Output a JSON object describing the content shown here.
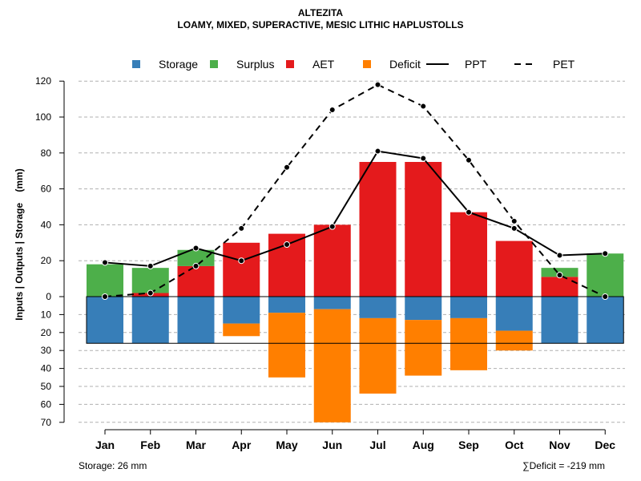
{
  "title": "ALTEZITA",
  "subtitle": "LOAMY, MIXED, SUPERACTIVE, MESIC LITHIC HAPLUSTOLLS",
  "footer": {
    "storage_note": "Storage: 26 mm",
    "deficit_symbol": "∑",
    "deficit_note": "Deficit = -219 mm"
  },
  "colors": {
    "storage": "#377EB8",
    "surplus": "#4DAF4A",
    "aet": "#E41A1C",
    "deficit": "#FF7F00"
  },
  "chart_data": {
    "type": "bar",
    "title": "ALTEZITA",
    "subtitle": "LOAMY, MIXED, SUPERACTIVE, MESIC LITHIC HAPLUSTOLLS",
    "ylabel": "Inputs | Outputs | Storage    (mm)",
    "categories": [
      "Jan",
      "Feb",
      "Mar",
      "Apr",
      "May",
      "Jun",
      "Jul",
      "Aug",
      "Sep",
      "Oct",
      "Nov",
      "Dec"
    ],
    "ylim_top": [
      0,
      120
    ],
    "ylim_bottom": [
      0,
      70
    ],
    "y_ticks_top": [
      0,
      20,
      40,
      60,
      80,
      100,
      120
    ],
    "y_ticks_bottom": [
      10,
      20,
      30,
      40,
      50,
      60,
      70
    ],
    "grid": true,
    "legend": {
      "position": "top",
      "entries": [
        {
          "label": "Storage",
          "type": "square",
          "key": "storage"
        },
        {
          "label": "Surplus",
          "type": "square",
          "key": "surplus"
        },
        {
          "label": "AET",
          "type": "square",
          "key": "aet"
        },
        {
          "label": "Deficit",
          "type": "square",
          "key": "deficit"
        },
        {
          "label": "PPT",
          "type": "solid-line"
        },
        {
          "label": "PET",
          "type": "dashed-line"
        }
      ]
    },
    "series": [
      {
        "name": "AET",
        "values": [
          0,
          2,
          17,
          30,
          35,
          40,
          75,
          75,
          47,
          31,
          11,
          0
        ]
      },
      {
        "name": "Surplus",
        "values": [
          18,
          14,
          9,
          0,
          0,
          0,
          0,
          0,
          0,
          0,
          5,
          24
        ]
      },
      {
        "name": "Storage",
        "values": [
          26,
          26,
          26,
          15,
          9,
          7,
          12,
          13,
          12,
          19,
          26,
          26
        ]
      },
      {
        "name": "Deficit",
        "values": [
          0,
          0,
          0,
          7,
          36,
          63,
          42,
          31,
          29,
          11,
          0,
          0
        ]
      },
      {
        "name": "PPT",
        "values": [
          19,
          17,
          27,
          20,
          29,
          39,
          81,
          77,
          47,
          38,
          23,
          24
        ]
      },
      {
        "name": "PET",
        "values": [
          0,
          2,
          17,
          38,
          72,
          104,
          118,
          106,
          76,
          42,
          12,
          0
        ]
      }
    ],
    "storage_capacity": 26,
    "total_deficit": -219
  }
}
